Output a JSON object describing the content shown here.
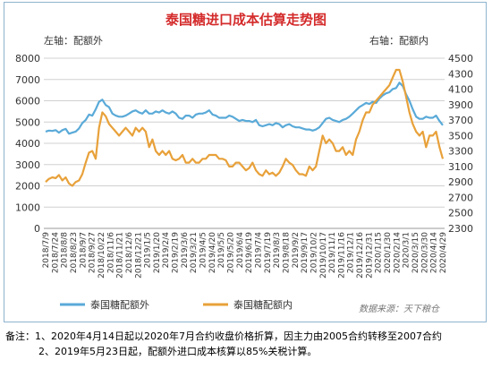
{
  "chart_data": {
    "type": "line",
    "title": "泰国糖进口成本估算走势图",
    "left_axis_label": "左轴：配额外",
    "right_axis_label": "右轴：配额内",
    "y_left": {
      "min": 0,
      "max": 8000,
      "step": 1000,
      "ticks": [
        "0",
        "1000",
        "2000",
        "3000",
        "4000",
        "5000",
        "6000",
        "7000",
        "8000"
      ]
    },
    "y_right": {
      "min": 2300,
      "max": 4500,
      "step": 200,
      "ticks": [
        "2300",
        "2500",
        "2700",
        "2900",
        "3100",
        "3300",
        "3500",
        "3700",
        "3900",
        "4100",
        "4300",
        "4500"
      ]
    },
    "x_ticks": [
      "2018/7/9",
      "2018/7/24",
      "2018/8/8",
      "2018/8/23",
      "2018/9/7",
      "2018/9/27",
      "2018/10/22",
      "2018/11/6",
      "2018/11/21",
      "2018/12/6",
      "2018/12/21",
      "2019/1/5",
      "2019/1/20",
      "2019/2/4",
      "2019/2/19",
      "2019/3/6",
      "2019/3/21",
      "2019/4/5",
      "2019/4/20",
      "2019/5/5",
      "2019/5/20",
      "2019/6/4",
      "2019/6/19",
      "2019/7/4",
      "2019/7/19",
      "2019/8/3",
      "2019/8/18",
      "2019/9/2",
      "2019/9/17",
      "2019/10/2",
      "2019/10/17",
      "2019/11/1",
      "2019/11/16",
      "2019/12/1",
      "2019/12/16",
      "2019/12/31",
      "2020/1/15",
      "2020/1/30",
      "2020/2/14",
      "2020/3/1",
      "2020/3/15",
      "2020/3/30",
      "2020/4/14",
      "2020/4/29"
    ],
    "series": [
      {
        "name": "泰国糖配额外",
        "axis": "left",
        "color": "#5aaad8",
        "values": [
          4550,
          4600,
          4580,
          4620,
          4500,
          4620,
          4680,
          4450,
          4500,
          4550,
          4700,
          4950,
          5100,
          5350,
          5300,
          5600,
          5950,
          6050,
          5800,
          5700,
          5400,
          5300,
          5250,
          5250,
          5300,
          5400,
          5500,
          5550,
          5450,
          5400,
          5550,
          5400,
          5400,
          5500,
          5450,
          5550,
          5450,
          5400,
          5500,
          5400,
          5200,
          5150,
          5300,
          5300,
          5200,
          5350,
          5400,
          5400,
          5450,
          5550,
          5350,
          5300,
          5200,
          5200,
          5200,
          5300,
          5250,
          5150,
          5050,
          5100,
          5050,
          5050,
          5000,
          5100,
          4850,
          4800,
          4850,
          4900,
          4850,
          4950,
          4900,
          4750,
          4850,
          4900,
          4800,
          4750,
          4750,
          4700,
          4650,
          4650,
          4600,
          4650,
          4750,
          4950,
          5150,
          5200,
          5100,
          5050,
          5000,
          5100,
          5150,
          5250,
          5400,
          5550,
          5700,
          5800,
          5900,
          5850,
          5950,
          5900,
          6100,
          6250,
          6350,
          6400,
          6550,
          6600,
          6850,
          6700,
          6300,
          6000,
          5600,
          5250,
          5150,
          5150,
          5250,
          5200,
          5200,
          5300,
          5050,
          4850
        ]
      },
      {
        "name": "泰国糖配额内",
        "axis": "right",
        "color": "#e8a13a",
        "values": [
          2900,
          2940,
          2960,
          2950,
          2990,
          2920,
          2960,
          2880,
          2850,
          2900,
          2920,
          3000,
          3150,
          3280,
          3300,
          3200,
          3600,
          3800,
          3750,
          3650,
          3600,
          3550,
          3500,
          3550,
          3600,
          3550,
          3500,
          3600,
          3550,
          3600,
          3550,
          3350,
          3450,
          3300,
          3250,
          3300,
          3250,
          3300,
          3200,
          3180,
          3200,
          3250,
          3150,
          3150,
          3200,
          3150,
          3150,
          3200,
          3200,
          3250,
          3250,
          3250,
          3200,
          3200,
          3180,
          3100,
          3100,
          3150,
          3150,
          3100,
          3050,
          3080,
          3150,
          3050,
          3000,
          2980,
          3050,
          3000,
          3020,
          2980,
          3020,
          3100,
          3200,
          3150,
          3120,
          3050,
          3000,
          3000,
          2980,
          3100,
          3050,
          3100,
          3300,
          3500,
          3400,
          3450,
          3400,
          3300,
          3300,
          3350,
          3250,
          3300,
          3250,
          3450,
          3550,
          3700,
          3800,
          3800,
          3900,
          3950,
          4000,
          4050,
          4100,
          4150,
          4250,
          4350,
          4350,
          4200,
          4000,
          3800,
          3650,
          3550,
          3500,
          3550,
          3350,
          3500,
          3500,
          3550,
          3350,
          3200
        ]
      }
    ]
  },
  "source": "数据来源：天下粮仓",
  "notes": {
    "line1": "备注：1、2020年4月14日起以2020年7月合约收盘价格折算，因主力由2005合约转移至2007合约",
    "line2": "2、2019年5月23日起，配额外进口成本核算以85%关税计算。"
  },
  "colors": {
    "title": "#d42b2b",
    "frame": "#8fb3cf",
    "grid": "#d0d0d0",
    "axis_text": "#333333"
  }
}
